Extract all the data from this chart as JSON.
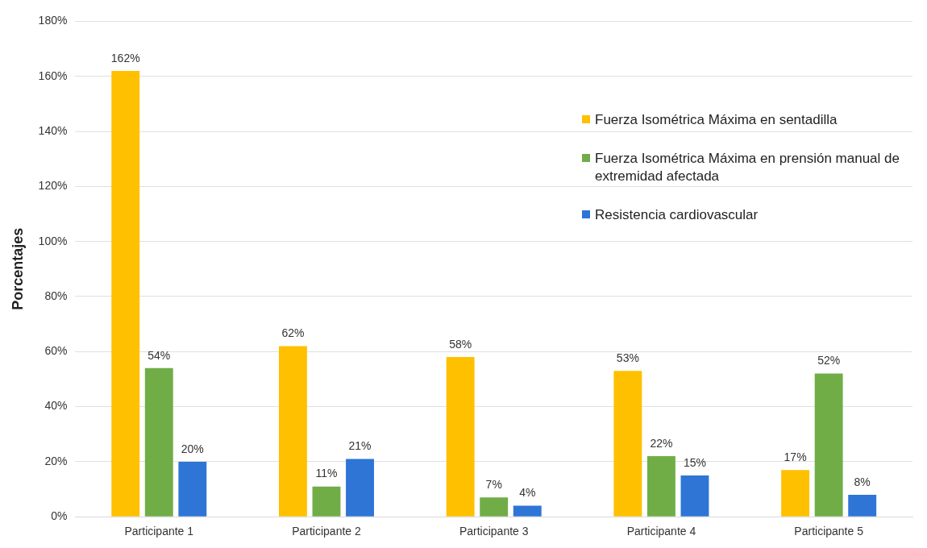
{
  "chart_data": {
    "type": "bar",
    "ylabel": "Porcentajes",
    "categories": [
      "Participante 1",
      "Participante 2",
      "Participante 3",
      "Participante 4",
      "Participante 5"
    ],
    "series": [
      {
        "name": "Fuerza Isométrica Máxima en sentadilla",
        "color": "#ffc000",
        "values": [
          162,
          62,
          58,
          53,
          17
        ],
        "value_labels": [
          "162%",
          "62%",
          "58%",
          "53%",
          "17%"
        ]
      },
      {
        "name": "Fuerza Isométrica Máxima en prensión manual de extremidad afectada",
        "color": "#70ad47",
        "values": [
          54,
          11,
          7,
          22,
          52
        ],
        "value_labels": [
          "54%",
          "11%",
          "7%",
          "22%",
          "52%"
        ]
      },
      {
        "name": "Resistencia cardiovascular",
        "color": "#2e75d6",
        "values": [
          20,
          21,
          4,
          15,
          8
        ],
        "value_labels": [
          "20%",
          "21%",
          "4%",
          "15%",
          "8%"
        ]
      }
    ],
    "ylim": [
      0,
      180
    ],
    "yticks": [
      {
        "value": 0,
        "label": "0%"
      },
      {
        "value": 20,
        "label": "20%"
      },
      {
        "value": 40,
        "label": "40%"
      },
      {
        "value": 60,
        "label": "60%"
      },
      {
        "value": 80,
        "label": "80%"
      },
      {
        "value": 100,
        "label": "100%"
      },
      {
        "value": 120,
        "label": "120%"
      },
      {
        "value": 140,
        "label": "140%"
      },
      {
        "value": 160,
        "label": "160%"
      },
      {
        "value": 180,
        "label": "180%"
      }
    ],
    "grid": "y",
    "legend": "top right"
  }
}
